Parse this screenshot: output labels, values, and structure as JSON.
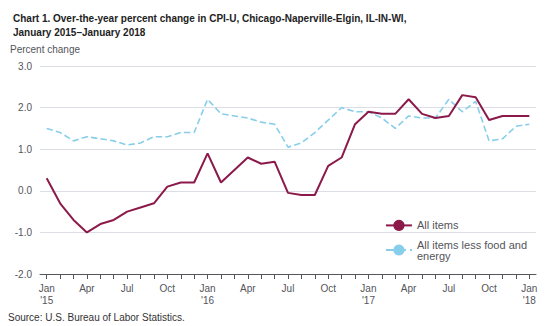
{
  "chart_data": {
    "type": "line",
    "title": "Chart 1. Over-the-year percent change in CPI-U, Chicago-Naperville-Elgin, IL-IN-WI,\nJanuary 2015–January 2018",
    "ylabel": "Percent change",
    "annotations": [
      "Source: U.S. Bureau of Labor Statistics."
    ],
    "categories": [
      "Jan\n'15",
      null,
      null,
      "Apr",
      null,
      null,
      "Jul",
      null,
      null,
      "Oct",
      null,
      null,
      "Jan\n'16",
      null,
      null,
      "Apr",
      null,
      null,
      "Jul",
      null,
      null,
      "Oct",
      null,
      null,
      "Jan\n'17",
      null,
      null,
      "Apr",
      null,
      null,
      "Jul",
      null,
      null,
      "Oct",
      null,
      null,
      "Jan\n'18"
    ],
    "series": [
      {
        "name": "All items",
        "color": "#8B1A4A",
        "line_style": "solid",
        "values": [
          0.3,
          -0.3,
          -0.7,
          -1.0,
          -0.8,
          -0.7,
          -0.5,
          -0.4,
          -0.3,
          0.1,
          0.2,
          0.2,
          0.9,
          0.2,
          0.5,
          0.8,
          0.65,
          0.7,
          -0.05,
          -0.1,
          -0.1,
          0.6,
          0.8,
          1.6,
          1.9,
          1.85,
          1.85,
          2.2,
          1.85,
          1.75,
          1.8,
          2.3,
          2.25,
          1.7,
          1.8,
          1.8,
          1.8
        ]
      },
      {
        "name": "All items less food and\nenergy",
        "color": "#87CEEB",
        "line_style": "dashed",
        "values": [
          1.5,
          1.4,
          1.2,
          1.3,
          1.25,
          1.2,
          1.1,
          1.15,
          1.3,
          1.3,
          1.4,
          1.4,
          2.2,
          1.85,
          1.8,
          1.75,
          1.65,
          1.6,
          1.05,
          1.15,
          1.4,
          1.7,
          2.0,
          1.9,
          1.9,
          1.75,
          1.5,
          1.8,
          1.75,
          1.75,
          2.2,
          1.9,
          2.15,
          1.2,
          1.25,
          1.55,
          1.6
        ]
      }
    ],
    "ylim": [
      -2.0,
      3.0
    ],
    "yticks": [
      {
        "value": -2.0,
        "label": "-2.0"
      },
      {
        "value": -1.0,
        "label": "-1.0"
      },
      {
        "value": 0.0,
        "label": "0.0"
      },
      {
        "value": 1.0,
        "label": "1.0"
      },
      {
        "value": 2.0,
        "label": "2.0"
      },
      {
        "value": 3.0,
        "label": "3.0"
      }
    ],
    "grid": true,
    "legend": "lower right"
  }
}
